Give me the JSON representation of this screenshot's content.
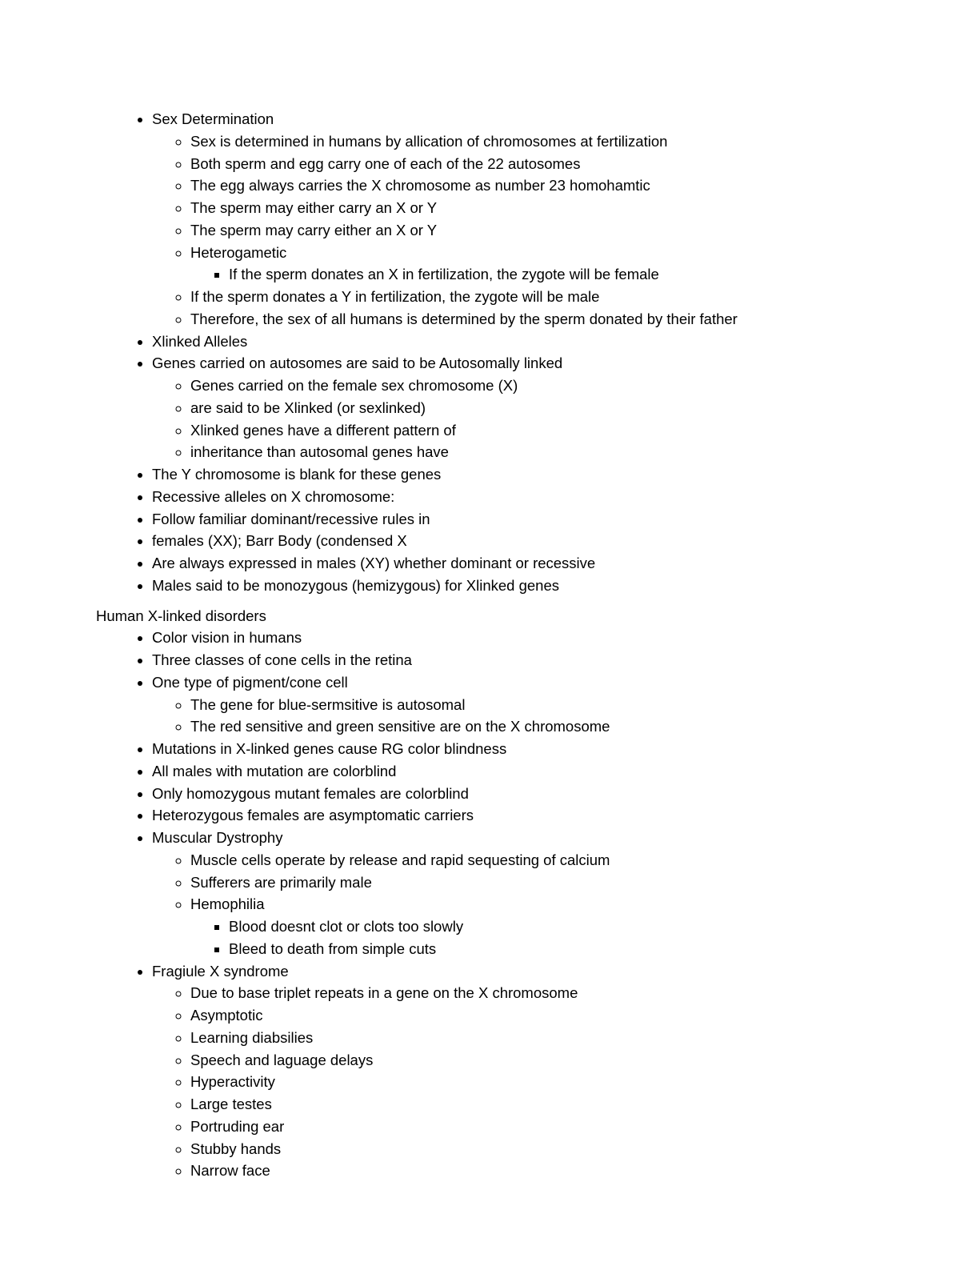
{
  "sec1": {
    "b1": "Sex Determination",
    "b1_c1": "Sex is determined in humans by allication of chromosomes at fertilization",
    "b1_c2": "Both sperm and egg carry one of each of the 22 autosomes",
    "b1_c3": "The egg always carries the X chromosome as number 23 homohamtic",
    "b1_c4": "The sperm may either carry an X or Y",
    "b1_c5": "The sperm may carry either an X or Y",
    "b1_c6": "Heterogametic",
    "b1_c6_s1": "If the sperm donates an X in fertilization,  the zygote will be female",
    "b1_c7": "If the sperm donates a Y in fertilization, the zygote will be male",
    "b1_c8": "Therefore, the sex of all humans is determined by the sperm donated by their father",
    "b2": "Xlinked Alleles",
    "b3": "Genes carried on autosomes are said to be Autosomally linked",
    "b3_c1": "Genes carried on the female sex chromosome (X)",
    "b3_c2": "are said to be Xlinked (or sexlinked)",
    "b3_c3": "Xlinked genes have a different pattern of",
    "b3_c4": "inheritance than autosomal genes have",
    "b4": "The Y chromosome is blank for these genes",
    "b5": "Recessive alleles on X chromosome:",
    "b6": "Follow familiar dominant/recessive rules in",
    "b7": "females (XX); Barr Body (condensed X",
    "b8": "Are always expressed in males (XY) whether dominant or recessive",
    "b9": "Males said to be monozygous (hemizygous) for Xlinked genes"
  },
  "heading2": "Human X-linked disorders",
  "sec2": {
    "b1": "Color vision in humans",
    "b2": "Three classes of cone cells in the retina",
    "b3": "One type of pigment/cone cell",
    "b3_c1": "The gene for blue-sermsitive is autosomal",
    "b3_c2": "The red sensitive and green sensitive are on the X chromosome",
    "b4": "Mutations in X-linked genes cause RG color blindness",
    "b5": "All males with mutation are colorblind",
    "b6": "Only homozygous mutant females are colorblind",
    "b7": "Heterozygous females are asymptomatic carriers",
    "b8": "Muscular Dystrophy",
    "b8_c1": "Muscle cells operate by release and rapid sequesting of calcium",
    "b8_c2": "Sufferers are primarily male",
    "b8_c3": "Hemophilia",
    "b8_c3_s1": "Blood doesnt clot or clots too slowly",
    "b8_c3_s2": "Bleed to death from simple cuts",
    "b9": "Fragiule X syndrome",
    "b9_c1": "Due to base triplet repeats in a gene on the X chromosome",
    "b9_c2": "Asymptotic",
    "b9_c3": "Learning diabsilies",
    "b9_c4": "Speech and laguage delays",
    "b9_c5": "Hyperactivity",
    "b9_c6": "Large testes",
    "b9_c7": "Portruding ear",
    "b9_c8": "Stubby hands",
    "b9_c9": "Narrow face"
  }
}
